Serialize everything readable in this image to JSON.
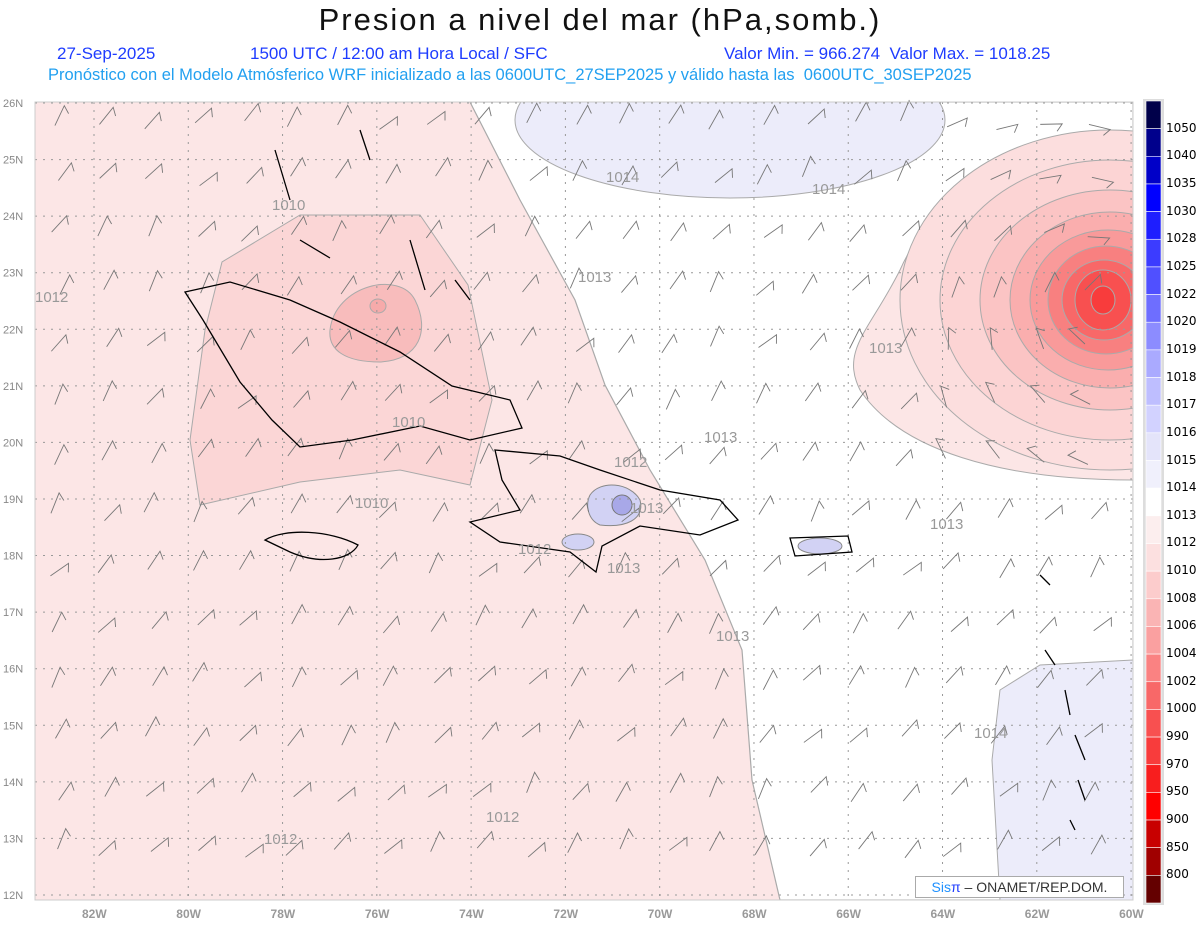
{
  "header": {
    "title": "Presion a nivel del mar (hPa,somb.)",
    "date": "27-Sep-2025",
    "time": "1500 UTC / 12:00 am Hora Local / SFC",
    "min_max": "Valor Min. = 966.274  Valor Max. = 1018.25",
    "forecast_info": "Pronóstico con el Modelo Atmósferico WRF inicializado a las 0600UTC_27SEP2025 y válido hasta las  0600UTC_30SEP2025"
  },
  "map": {
    "lat_labels": [
      "26N",
      "25N",
      "24N",
      "23N",
      "22N",
      "21N",
      "20N",
      "19N",
      "18N",
      "17N",
      "16N",
      "15N",
      "14N",
      "13N",
      "12N"
    ],
    "lon_labels": [
      "82W",
      "80W",
      "78W",
      "76W",
      "74W",
      "72W",
      "70W",
      "68W",
      "66W",
      "64W",
      "62W",
      "60W"
    ],
    "contour_labels": [
      "1014",
      "1014",
      "1010",
      "1013",
      "1012",
      "1013",
      "1010",
      "1013",
      "1012",
      "1010",
      "1013",
      "1012",
      "1013",
      "1013",
      "1013",
      "1014",
      "1012",
      "1012"
    ]
  },
  "colorbar": {
    "labels": [
      "1050",
      "1040",
      "1035",
      "1030",
      "1028",
      "1025",
      "1022",
      "1020",
      "1019",
      "1018",
      "1017",
      "1016",
      "1015",
      "1014",
      "1013",
      "1012",
      "1010",
      "1008",
      "1006",
      "1004",
      "1002",
      "1000",
      "990",
      "970",
      "950",
      "900",
      "850",
      "800"
    ],
    "colors": [
      "#00004a",
      "#00008c",
      "#0000c8",
      "#0000ff",
      "#1e1eff",
      "#3c3cff",
      "#5050ff",
      "#6e6eff",
      "#8c8cff",
      "#aaaaff",
      "#bebeff",
      "#d2d2ff",
      "#e4e4fa",
      "#f0f0fc",
      "#ffffff",
      "#fceeee",
      "#fce0e0",
      "#fccccc",
      "#fab4b4",
      "#faa0a0",
      "#fa8282",
      "#f86868",
      "#f85050",
      "#f83c3c",
      "#f81e1e",
      "#ff0000",
      "#c80000",
      "#a00000",
      "#640000"
    ]
  },
  "credit": {
    "sis": "Sis",
    "pi": "π",
    "org": " – ONAMET/REP.DOM."
  }
}
